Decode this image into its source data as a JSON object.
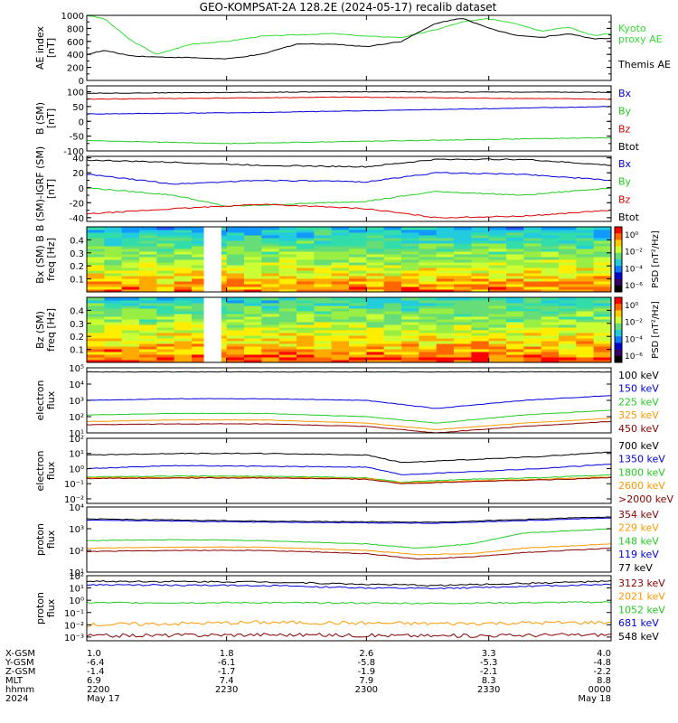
{
  "title": "GEO-KOMPSAT-2A 128.2E (2024-05-17) recalib dataset",
  "colors": {
    "black": "#000000",
    "red": "#dd0000",
    "green": "#22cc22",
    "blue": "#0000dd",
    "orange": "#ff9900",
    "darkred": "#880000",
    "kyoto": "#33dd33"
  },
  "chart_data": [
    {
      "id": "ae",
      "type": "line",
      "ylabel": [
        "AE index",
        "[nT]"
      ],
      "ylim": [
        0,
        1000
      ],
      "yscale": "linear",
      "yticks": [
        0,
        200,
        400,
        600,
        800,
        1000
      ],
      "yticklabels": [
        "0",
        "200",
        "400",
        "600",
        "800",
        "1000"
      ],
      "legend": [
        {
          "label": "Kyoto",
          "color": "#33dd33"
        },
        {
          "label": "proxy AE",
          "color": "#33dd33"
        },
        {
          "label": "Themis AE",
          "color": "#000000"
        }
      ],
      "series": [
        {
          "name": "Kyoto proxy AE",
          "color": "#33dd33",
          "x": [
            1.0,
            1.1,
            1.25,
            1.4,
            1.6,
            1.8,
            2.0,
            2.2,
            2.4,
            2.6,
            2.8,
            3.0,
            3.15,
            3.3,
            3.45,
            3.6,
            3.75,
            3.9,
            4.0
          ],
          "y": [
            1000,
            950,
            620,
            400,
            560,
            600,
            680,
            700,
            720,
            680,
            660,
            780,
            900,
            950,
            880,
            760,
            820,
            690,
            720
          ]
        },
        {
          "name": "Themis AE",
          "color": "#000000",
          "x": [
            1.0,
            1.1,
            1.25,
            1.4,
            1.6,
            1.8,
            2.0,
            2.2,
            2.4,
            2.6,
            2.8,
            3.0,
            3.15,
            3.3,
            3.45,
            3.6,
            3.75,
            3.9,
            4.0
          ],
          "y": [
            400,
            460,
            380,
            360,
            350,
            330,
            400,
            560,
            560,
            520,
            600,
            880,
            960,
            800,
            700,
            660,
            720,
            640,
            650
          ]
        }
      ]
    },
    {
      "id": "b_sm",
      "type": "line",
      "ylabel": [
        "B (SM)",
        "[nT]"
      ],
      "ylim": [
        -100,
        120
      ],
      "yscale": "linear",
      "yticks": [
        -100,
        -50,
        0,
        50,
        100
      ],
      "yticklabels": [
        "-100",
        "-50",
        "0",
        "50",
        "100"
      ],
      "legend": [
        {
          "label": "Bx",
          "color": "#0000dd"
        },
        {
          "label": "By",
          "color": "#22cc22"
        },
        {
          "label": "Bz",
          "color": "#dd0000"
        },
        {
          "label": "Btot",
          "color": "#000000"
        }
      ],
      "series": [
        {
          "name": "Btot",
          "color": "#000000",
          "x": [
            1.0,
            2.5,
            4.0
          ],
          "y": [
            95,
            100,
            98
          ]
        },
        {
          "name": "Bz",
          "color": "#dd0000",
          "x": [
            1.0,
            2.5,
            4.0
          ],
          "y": [
            75,
            82,
            75
          ]
        },
        {
          "name": "Bx",
          "color": "#0000dd",
          "x": [
            1.0,
            2.0,
            3.0,
            4.0
          ],
          "y": [
            25,
            30,
            40,
            50
          ]
        },
        {
          "name": "By",
          "color": "#22cc22",
          "x": [
            1.0,
            1.8,
            2.5,
            4.0
          ],
          "y": [
            -65,
            -75,
            -68,
            -55
          ]
        }
      ]
    },
    {
      "id": "b_igrf",
      "type": "line",
      "ylabel": [
        "B (SM)-IGRF (SM)",
        "[nT]"
      ],
      "ylim": [
        -45,
        42
      ],
      "yscale": "linear",
      "yticks": [
        -40,
        -20,
        0,
        20,
        40
      ],
      "yticklabels": [
        "-40",
        "-20",
        "0",
        "20",
        "40"
      ],
      "legend": [
        {
          "label": "Bx",
          "color": "#0000dd"
        },
        {
          "label": "By",
          "color": "#22cc22"
        },
        {
          "label": "Bz",
          "color": "#dd0000"
        },
        {
          "label": "Btot",
          "color": "#000000"
        }
      ],
      "series": [
        {
          "name": "Btot",
          "color": "#000000",
          "x": [
            1.0,
            1.5,
            2.0,
            2.6,
            3.0,
            3.5,
            4.0
          ],
          "y": [
            37,
            34,
            30,
            28,
            38,
            38,
            30
          ]
        },
        {
          "name": "Bx",
          "color": "#0000dd",
          "x": [
            1.0,
            1.5,
            2.0,
            2.6,
            3.0,
            3.5,
            4.0
          ],
          "y": [
            18,
            5,
            10,
            8,
            20,
            18,
            10
          ]
        },
        {
          "name": "By",
          "color": "#22cc22",
          "x": [
            1.0,
            1.5,
            1.8,
            2.6,
            3.0,
            3.5,
            4.0
          ],
          "y": [
            0,
            -10,
            -25,
            -18,
            -5,
            -10,
            0
          ]
        },
        {
          "name": "Bz",
          "color": "#dd0000",
          "x": [
            1.0,
            1.5,
            2.0,
            2.6,
            3.0,
            3.5,
            4.0
          ],
          "y": [
            -35,
            -28,
            -22,
            -28,
            -40,
            -38,
            -30
          ]
        }
      ]
    },
    {
      "id": "bx_spec",
      "type": "heatmap",
      "ylabel": [
        "Bx (SM) B",
        "freq [Hz]"
      ],
      "ylim": [
        0.0,
        0.5
      ],
      "yscale": "linear",
      "yticks": [
        0.1,
        0.2,
        0.3,
        0.4
      ],
      "yticklabels": [
        "0.1",
        "0.2",
        "0.3",
        "0.4"
      ],
      "data_gap_x": [
        1.67,
        1.77
      ],
      "colorbar": {
        "label": "PSD [nT²/Hz]",
        "ticklabels": [
          "10⁰",
          "10⁻²",
          "10⁻⁴",
          "10⁻⁶"
        ]
      }
    },
    {
      "id": "bz_spec",
      "type": "heatmap",
      "ylabel": [
        "Bz (SM)",
        "freq [Hz]"
      ],
      "ylim": [
        0.0,
        0.5
      ],
      "yscale": "linear",
      "yticks": [
        0.1,
        0.2,
        0.3,
        0.4
      ],
      "yticklabels": [
        "0.1",
        "0.2",
        "0.3",
        "0.4"
      ],
      "data_gap_x": [
        1.67,
        1.77
      ],
      "colorbar": {
        "label": "PSD [nT²/Hz]",
        "ticklabels": [
          "10⁰",
          "10⁻²",
          "10⁻⁴",
          "10⁻⁶"
        ]
      }
    },
    {
      "id": "e_low",
      "type": "line",
      "ylabel": [
        "electron",
        "flux"
      ],
      "ylim": [
        1,
        5
      ],
      "yscale": "log",
      "yticks": [
        1,
        2,
        3,
        4,
        5
      ],
      "yticklabels": [
        "10¹",
        "10²",
        "10³",
        "10⁴",
        "10⁵"
      ],
      "legend": [
        {
          "label": "100 keV",
          "color": "#000000"
        },
        {
          "label": "150 keV",
          "color": "#0000dd"
        },
        {
          "label": "225 keV",
          "color": "#22cc22"
        },
        {
          "label": "325 keV",
          "color": "#ff9900"
        },
        {
          "label": "450 keV",
          "color": "#880000"
        }
      ],
      "series": [
        {
          "name": "100 keV",
          "color": "#000000",
          "x": [
            1.0,
            4.0
          ],
          "y": [
            4.75,
            4.75
          ]
        },
        {
          "name": "150 keV",
          "color": "#0000dd",
          "x": [
            1.0,
            1.5,
            2.0,
            2.6,
            3.0,
            3.5,
            4.0
          ],
          "y": [
            3.0,
            3.1,
            3.1,
            3.0,
            2.5,
            3.0,
            3.3
          ]
        },
        {
          "name": "225 keV",
          "color": "#22cc22",
          "x": [
            1.0,
            1.5,
            2.0,
            2.6,
            3.0,
            3.5,
            4.0
          ],
          "y": [
            2.1,
            2.2,
            2.2,
            2.0,
            1.6,
            2.1,
            2.4
          ]
        },
        {
          "name": "325 keV",
          "color": "#ff9900",
          "x": [
            1.0,
            1.5,
            2.0,
            2.6,
            3.0,
            3.5,
            4.0
          ],
          "y": [
            1.7,
            1.8,
            1.8,
            1.6,
            1.2,
            1.6,
            1.9
          ]
        },
        {
          "name": "450 keV",
          "color": "#880000",
          "x": [
            1.0,
            1.5,
            2.0,
            2.6,
            3.0,
            3.5,
            4.0
          ],
          "y": [
            1.5,
            1.55,
            1.55,
            1.4,
            1.0,
            1.4,
            1.7
          ]
        }
      ]
    },
    {
      "id": "e_high",
      "type": "line",
      "ylabel": [
        "electron",
        "flux"
      ],
      "ylim": [
        -2.3,
        2
      ],
      "yscale": "log",
      "yticks": [
        -2,
        -1,
        0,
        1,
        2
      ],
      "yticklabels": [
        "10⁻²",
        "10⁻¹",
        "10⁰",
        "10¹",
        "10²"
      ],
      "legend": [
        {
          "label": "700 keV",
          "color": "#000000"
        },
        {
          "label": "1350 keV",
          "color": "#0000dd"
        },
        {
          "label": "1800 keV",
          "color": "#22cc22"
        },
        {
          "label": "2600 keV",
          "color": "#ff9900"
        },
        {
          "label": ">2000 keV",
          "color": "#880000"
        }
      ],
      "series": [
        {
          "name": "700 keV",
          "color": "#000000",
          "x": [
            1.0,
            1.5,
            2.0,
            2.6,
            2.8,
            3.2,
            3.6,
            4.0
          ],
          "y": [
            0.9,
            1.0,
            1.0,
            0.9,
            0.4,
            0.6,
            0.8,
            1.1
          ]
        },
        {
          "name": "1350 keV",
          "color": "#0000dd",
          "x": [
            1.0,
            1.5,
            2.0,
            2.6,
            2.8,
            3.2,
            3.6,
            4.0
          ],
          "y": [
            0.0,
            0.2,
            0.15,
            0.1,
            -0.4,
            -0.2,
            0.0,
            0.3
          ]
        },
        {
          "name": "1800 keV",
          "color": "#22cc22",
          "x": [
            1.0,
            1.5,
            2.0,
            2.6,
            2.8,
            3.2,
            3.6,
            4.0
          ],
          "y": [
            -0.55,
            -0.5,
            -0.5,
            -0.6,
            -0.9,
            -0.7,
            -0.6,
            -0.4
          ]
        },
        {
          "name": "2600 keV",
          "color": "#ff9900",
          "x": [
            1.0,
            1.5,
            2.0,
            2.6,
            2.8,
            3.2,
            3.6,
            4.0
          ],
          "y": [
            -0.6,
            -0.58,
            -0.58,
            -0.65,
            -0.95,
            -0.8,
            -0.7,
            -0.55
          ]
        },
        {
          "name": ">2000 keV",
          "color": "#880000",
          "x": [
            1.0,
            1.5,
            2.0,
            2.6,
            2.8,
            3.2,
            3.6,
            4.0
          ],
          "y": [
            -0.65,
            -0.62,
            -0.62,
            -0.7,
            -1.0,
            -0.85,
            -0.75,
            -0.6
          ]
        }
      ]
    },
    {
      "id": "p_low",
      "type": "line",
      "ylabel": [
        "proton",
        "flux"
      ],
      "ylim": [
        1,
        4
      ],
      "yscale": "log",
      "yticks": [
        1,
        2,
        3,
        4
      ],
      "yticklabels": [
        "10¹",
        "10²",
        "10³",
        "10⁴"
      ],
      "legend": [
        {
          "label": "354 keV",
          "color": "#880000"
        },
        {
          "label": "229 keV",
          "color": "#ff9900"
        },
        {
          "label": "148 keV",
          "color": "#22cc22"
        },
        {
          "label": "119 keV",
          "color": "#0000dd"
        },
        {
          "label": "77 keV",
          "color": "#000000"
        }
      ],
      "series": [
        {
          "name": "77 keV",
          "color": "#000000",
          "x": [
            1.0,
            2.0,
            3.0,
            4.0
          ],
          "y": [
            3.45,
            3.35,
            3.3,
            3.55
          ]
        },
        {
          "name": "119 keV",
          "color": "#0000dd",
          "x": [
            1.0,
            2.0,
            3.0,
            4.0
          ],
          "y": [
            3.4,
            3.3,
            3.25,
            3.5
          ]
        },
        {
          "name": "148 keV",
          "color": "#22cc22",
          "x": [
            1.0,
            1.5,
            2.0,
            2.6,
            2.9,
            3.2,
            3.5,
            4.0
          ],
          "y": [
            2.45,
            2.5,
            2.45,
            2.3,
            2.1,
            2.3,
            2.8,
            3.0
          ]
        },
        {
          "name": "229 keV",
          "color": "#ff9900",
          "x": [
            1.0,
            1.5,
            2.0,
            2.6,
            2.9,
            3.2,
            3.5,
            4.0
          ],
          "y": [
            2.1,
            2.15,
            2.15,
            2.0,
            1.8,
            1.85,
            2.1,
            2.3
          ]
        },
        {
          "name": "354 keV",
          "color": "#880000",
          "x": [
            1.0,
            1.5,
            2.0,
            2.6,
            2.9,
            3.2,
            3.5,
            4.0
          ],
          "y": [
            1.95,
            2.0,
            2.0,
            1.85,
            1.6,
            1.7,
            1.9,
            2.1
          ]
        }
      ]
    },
    {
      "id": "p_high",
      "type": "line",
      "ylabel": [
        "proton",
        "flux"
      ],
      "ylim": [
        -3.3,
        2
      ],
      "yscale": "log",
      "yticks": [
        -3,
        -2,
        -1,
        0,
        1,
        2
      ],
      "yticklabels": [
        "10⁻³",
        "10⁻²",
        "10⁻¹",
        "10⁰",
        "10¹",
        "10²"
      ],
      "legend": [
        {
          "label": "3123 keV",
          "color": "#880000"
        },
        {
          "label": "2021 keV",
          "color": "#ff9900"
        },
        {
          "label": "1052 keV",
          "color": "#22cc22"
        },
        {
          "label": "681 keV",
          "color": "#0000dd"
        },
        {
          "label": "548 keV",
          "color": "#000000"
        }
      ],
      "series": [
        {
          "name": "548 keV",
          "color": "#000000",
          "x": [
            1.0,
            2.0,
            2.6,
            3.0,
            4.0
          ],
          "y": [
            1.55,
            1.5,
            1.3,
            1.2,
            1.55
          ]
        },
        {
          "name": "681 keV",
          "color": "#0000dd",
          "x": [
            1.0,
            2.0,
            2.6,
            3.0,
            4.0
          ],
          "y": [
            1.25,
            1.2,
            1.0,
            0.95,
            1.3
          ]
        },
        {
          "name": "1052 keV",
          "color": "#22cc22",
          "x": [
            1.0,
            2.0,
            3.0,
            4.0
          ],
          "y": [
            -0.2,
            -0.2,
            -0.25,
            -0.15
          ]
        },
        {
          "name": "2021 keV",
          "color": "#ff9900",
          "x": [
            1.0,
            2.0,
            3.0,
            4.0
          ],
          "y": [
            -2.0,
            -1.8,
            -1.9,
            -1.8
          ]
        },
        {
          "name": "3123 keV",
          "color": "#880000",
          "x": [
            1.0,
            2.0,
            3.0,
            4.0
          ],
          "y": [
            -2.9,
            -2.8,
            -2.9,
            -2.8
          ]
        }
      ]
    }
  ],
  "x_axis": {
    "xlim": [
      1.0,
      4.0
    ],
    "row_labels": [
      "X-GSM",
      "Y-GSM",
      "Z-GSM",
      "MLT",
      "hhmm",
      "2024"
    ],
    "columns": [
      {
        "x": 1.0,
        "values": [
          "1.0",
          "-6.4",
          "-1.4",
          "6.9",
          "2200",
          "May 17"
        ]
      },
      {
        "x": 1.8,
        "values": [
          "1.8",
          "-6.1",
          "-1.7",
          "7.4",
          "2230",
          ""
        ]
      },
      {
        "x": 2.6,
        "values": [
          "2.6",
          "-5.8",
          "-1.9",
          "7.9",
          "2300",
          ""
        ]
      },
      {
        "x": 3.3,
        "values": [
          "3.3",
          "-5.3",
          "-2.1",
          "8.3",
          "2330",
          ""
        ]
      },
      {
        "x": 4.0,
        "values": [
          "4.0",
          "-4.8",
          "-2.2",
          "8.8",
          "0000",
          "May 18"
        ]
      }
    ]
  }
}
